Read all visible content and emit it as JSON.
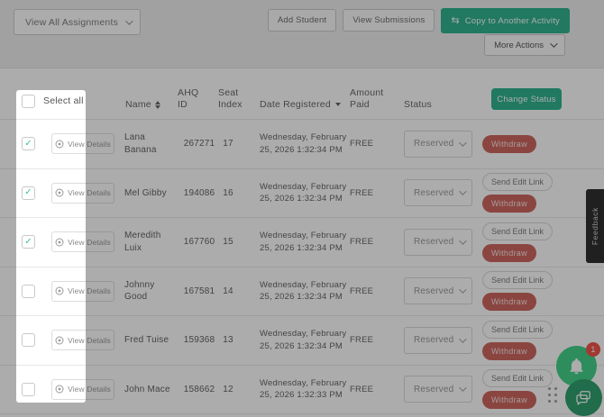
{
  "toolbar": {
    "assignments_filter_value": "View All Assignments",
    "add_student_label": "Add Student",
    "view_submissions_label": "View Submissions",
    "copy_to_activity_label": "Copy to Another Activity",
    "copy_icon": "swap-arrows-icon",
    "more_actions_label": "More Actions"
  },
  "table": {
    "select_all_label": "Select all",
    "headers": {
      "name": "Name",
      "ahq_id": "AHQ ID",
      "seat_index": "Seat Index",
      "date_registered": "Date Registered",
      "amount_paid": "Amount Paid",
      "status": "Status"
    },
    "change_status_label": "Change Status",
    "row_labels": {
      "view_details": "View Details",
      "send_edit_link": "Send Edit Link",
      "withdraw": "Withdraw"
    },
    "rows": [
      {
        "checked": true,
        "name": "Lana Banana",
        "ahq_id": "267271",
        "seat_index": "17",
        "date_registered": "Wednesday, February 25, 2026 1:32:34 PM",
        "amount_paid": "FREE",
        "status": "Reserved",
        "has_send_edit_link": false
      },
      {
        "checked": true,
        "name": "Mel Gibby",
        "ahq_id": "194086",
        "seat_index": "16",
        "date_registered": "Wednesday, February 25, 2026 1:32:34 PM",
        "amount_paid": "FREE",
        "status": "Reserved",
        "has_send_edit_link": true
      },
      {
        "checked": true,
        "name": "Meredith Luix",
        "ahq_id": "167760",
        "seat_index": "15",
        "date_registered": "Wednesday, February 25, 2026 1:32:34 PM",
        "amount_paid": "FREE",
        "status": "Reserved",
        "has_send_edit_link": true
      },
      {
        "checked": false,
        "name": "Johnny Good",
        "ahq_id": "167581",
        "seat_index": "14",
        "date_registered": "Wednesday, February 25, 2026 1:32:34 PM",
        "amount_paid": "FREE",
        "status": "Reserved",
        "has_send_edit_link": true
      },
      {
        "checked": false,
        "name": "Fred Tuise",
        "ahq_id": "159368",
        "seat_index": "13",
        "date_registered": "Wednesday, February 25, 2026 1:32:34 PM",
        "amount_paid": "FREE",
        "status": "Reserved",
        "has_send_edit_link": true
      },
      {
        "checked": false,
        "name": "John Mace",
        "ahq_id": "158662",
        "seat_index": "12",
        "date_registered": "Wednesday, February 25, 2026 1:32:33 PM",
        "amount_paid": "FREE",
        "status": "Reserved",
        "has_send_edit_link": true
      }
    ]
  },
  "feedback_tab_label": "Feedback",
  "floating": {
    "notification_badge": "1",
    "bell_icon": "bell-icon",
    "chat_icon": "chat-icon"
  },
  "colors": {
    "accent_green": "#17ab80",
    "check_green": "#3ec48a",
    "danger_red": "#c9544c",
    "bell_green": "#2ecc7c",
    "chat_green": "#17945e",
    "badge_red": "#ee4035",
    "feedback_bg": "#161616",
    "dim_overlay": "rgba(47,47,47,0.40)"
  }
}
